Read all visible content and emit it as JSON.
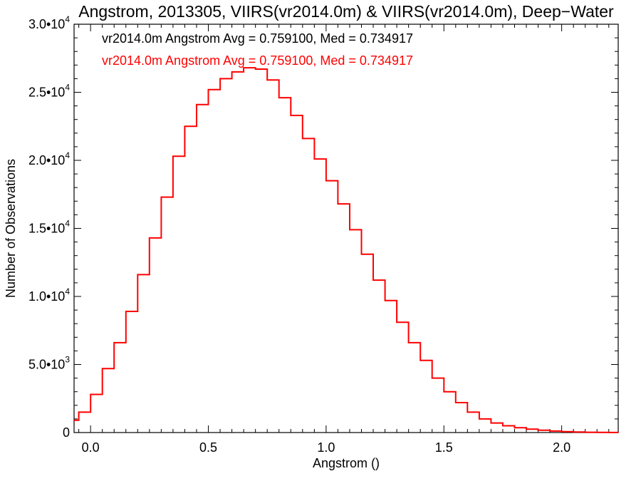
{
  "chart_data": {
    "type": "line",
    "step": true,
    "title": "Angstrom, 2013305, VIIRS(vr2014.0m) & VIIRS(vr2014.0m), Deep−Water",
    "xlabel": "Angstrom ()",
    "ylabel": "Number of Observations",
    "xlim": [
      -0.07,
      2.24
    ],
    "ylim": [
      0,
      30000
    ],
    "x_ticks": [
      {
        "value": 0.0,
        "label": "0.0"
      },
      {
        "value": 0.5,
        "label": "0.5"
      },
      {
        "value": 1.0,
        "label": "1.0"
      },
      {
        "value": 1.5,
        "label": "1.5"
      },
      {
        "value": 2.0,
        "label": "2.0"
      }
    ],
    "y_ticks": [
      {
        "value": 0,
        "mant": "0",
        "exp": ""
      },
      {
        "value": 5000,
        "mant": "5.0•10",
        "exp": "3"
      },
      {
        "value": 10000,
        "mant": "1.0•10",
        "exp": "4"
      },
      {
        "value": 15000,
        "mant": "1.5•10",
        "exp": "4"
      },
      {
        "value": 20000,
        "mant": "2.0•10",
        "exp": "4"
      },
      {
        "value": 25000,
        "mant": "2.5•10",
        "exp": "4"
      },
      {
        "value": 30000,
        "mant": "3.0•10",
        "exp": "4"
      }
    ],
    "grid": false,
    "legend": [
      {
        "text": "vr2014.0m Angstrom Avg = 0.759100, Med = 0.734917",
        "color": "#000000"
      },
      {
        "text": "vr2014.0m Angstrom Avg = 0.759100, Med = 0.734917",
        "color": "#ff0000"
      }
    ],
    "series": [
      {
        "color": "#ff0000",
        "x": [
          -0.07,
          -0.05,
          0.0,
          0.05,
          0.1,
          0.15,
          0.2,
          0.25,
          0.3,
          0.35,
          0.4,
          0.45,
          0.5,
          0.55,
          0.6,
          0.65,
          0.7,
          0.75,
          0.8,
          0.85,
          0.9,
          0.95,
          1.0,
          1.05,
          1.1,
          1.15,
          1.2,
          1.25,
          1.3,
          1.35,
          1.4,
          1.45,
          1.5,
          1.55,
          1.6,
          1.65,
          1.7,
          1.75,
          1.8,
          1.85,
          1.9,
          1.95,
          2.0,
          2.05,
          2.1,
          2.15,
          2.2,
          2.24
        ],
        "y": [
          900,
          1500,
          2800,
          4700,
          6600,
          8900,
          11600,
          14300,
          17300,
          20300,
          22500,
          24100,
          25200,
          26000,
          26500,
          26800,
          26700,
          25900,
          24600,
          23300,
          21600,
          20100,
          18500,
          16800,
          14900,
          13100,
          11200,
          9700,
          8100,
          6600,
          5300,
          4000,
          3000,
          2200,
          1500,
          1000,
          700,
          500,
          350,
          250,
          170,
          110,
          70,
          40,
          20,
          10,
          5,
          0
        ]
      }
    ]
  }
}
